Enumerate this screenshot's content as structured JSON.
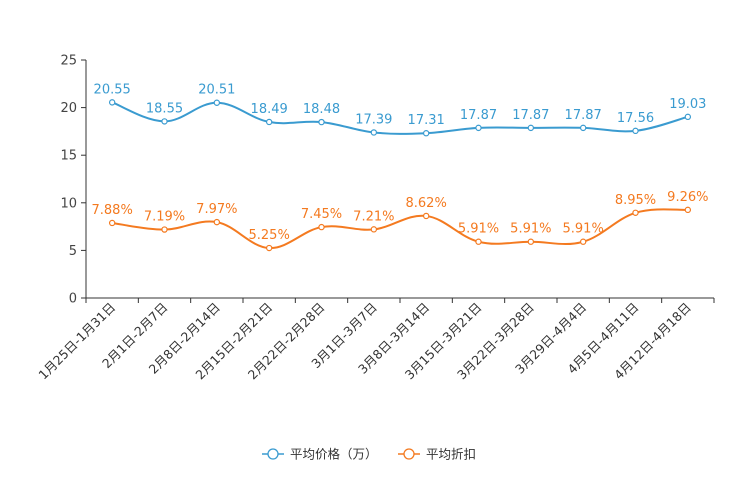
{
  "chart_data": {
    "type": "line",
    "categories": [
      "1月25日-1月31日",
      "2月1日-2月7日",
      "2月8日-2月14日",
      "2月15日-2月21日",
      "2月22日-2月28日",
      "3月1日-3月7日",
      "3月8日-3月14日",
      "3月15日-3月21日",
      "3月22日-3月28日",
      "3月29日-4月4日",
      "4月5日-4月11日",
      "4月12日-4月18日"
    ],
    "ylim": [
      0,
      25
    ],
    "yticks": [
      0,
      5,
      10,
      15,
      20,
      25
    ],
    "series": [
      {
        "name": "平均价格（万）",
        "color": "#3a9bd0",
        "values": [
          20.55,
          18.55,
          20.51,
          18.49,
          18.48,
          17.39,
          17.31,
          17.87,
          17.87,
          17.87,
          17.56,
          19.03
        ],
        "labels": [
          "20.55",
          "18.55",
          "20.51",
          "18.49",
          "18.48",
          "17.39",
          "17.31",
          "17.87",
          "17.87",
          "17.87",
          "17.56",
          "19.03"
        ]
      },
      {
        "name": "平均折扣",
        "color": "#f47a20",
        "values": [
          7.88,
          7.19,
          7.97,
          5.25,
          7.45,
          7.21,
          8.62,
          5.91,
          5.91,
          5.91,
          8.95,
          9.26
        ],
        "labels": [
          "7.88%",
          "7.19%",
          "7.97%",
          "5.25%",
          "7.45%",
          "7.21%",
          "8.62%",
          "5.91%",
          "5.91%",
          "5.91%",
          "8.95%",
          "9.26%"
        ]
      }
    ],
    "legend": [
      "平均价格（万）",
      "平均折扣"
    ],
    "legend_position": "bottom-center",
    "grid": false
  }
}
